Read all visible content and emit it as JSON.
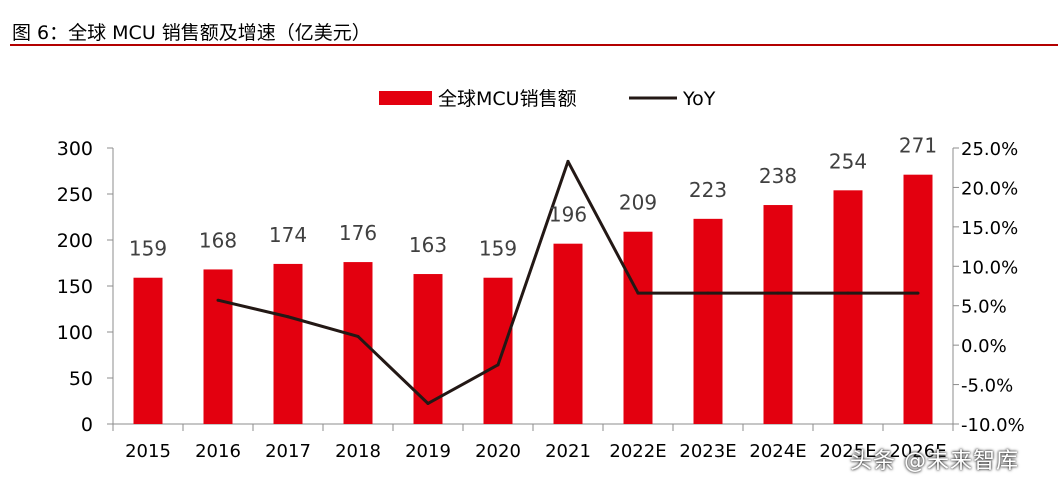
{
  "title": "图 6：全球 MCU 销售额及增速（亿美元）",
  "watermark": "头条 @未来智库",
  "colors": {
    "bar": "#e3000f",
    "line": "#231815",
    "rule": "#b30000"
  },
  "chart_data": {
    "type": "bar",
    "categories": [
      "2015",
      "2016",
      "2017",
      "2018",
      "2019",
      "2020",
      "2021",
      "2022E",
      "2023E",
      "2024E",
      "2025E",
      "2026E"
    ],
    "series": [
      {
        "name": "全球MCU销售额",
        "type": "bar",
        "axis": "left",
        "values": [
          159,
          168,
          174,
          176,
          163,
          159,
          196,
          209,
          223,
          238,
          254,
          271
        ]
      },
      {
        "name": "YoY",
        "type": "line",
        "axis": "right",
        "values": [
          null,
          5.7,
          3.6,
          1.1,
          -7.4,
          -2.5,
          23.3,
          6.6,
          6.6,
          6.6,
          6.6,
          6.6
        ]
      }
    ],
    "y_left": {
      "min": 0,
      "max": 300,
      "ticks": [
        "0",
        "50",
        "100",
        "150",
        "200",
        "250",
        "300"
      ]
    },
    "y_right": {
      "min": -10,
      "max": 25,
      "ticks": [
        "-10.0%",
        "-5.0%",
        "0.0%",
        "5.0%",
        "10.0%",
        "15.0%",
        "20.0%",
        "25.0%"
      ]
    },
    "data_labels": [
      "159",
      "168",
      "174",
      "176",
      "163",
      "159",
      "196",
      "209",
      "223",
      "238",
      "254",
      "271"
    ],
    "legend": [
      "全球MCU销售额",
      "YoY"
    ],
    "legend_position": "top-center",
    "grid": false
  }
}
